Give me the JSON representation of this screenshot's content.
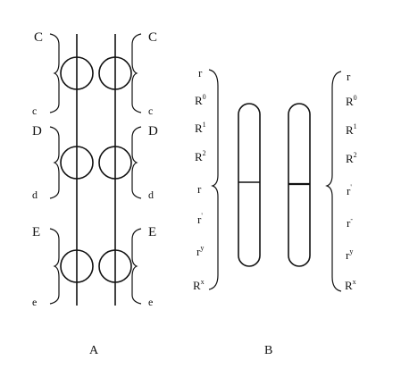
{
  "panel_a": {
    "caption": "A",
    "groups": [
      {
        "upper_left": "C",
        "upper_right": "C",
        "lower_left": "c",
        "lower_right": "c"
      },
      {
        "upper_left": "D",
        "upper_right": "D",
        "lower_left": "d",
        "lower_right": "d"
      },
      {
        "upper_left": "E",
        "upper_right": "E",
        "lower_left": "e",
        "lower_right": "e"
      }
    ]
  },
  "panel_b": {
    "caption": "B",
    "left_labels": [
      {
        "base": "r",
        "sup": ""
      },
      {
        "base": "R",
        "sup": "0"
      },
      {
        "base": "R",
        "sup": "1"
      },
      {
        "base": "R",
        "sup": "2"
      },
      {
        "base": "r",
        "sup": ""
      },
      {
        "base": "r",
        "sup": "'"
      },
      {
        "base": "r",
        "sup": "y"
      },
      {
        "base": "R",
        "sup": "x"
      }
    ],
    "right_labels": [
      {
        "base": "r",
        "sup": ""
      },
      {
        "base": "R",
        "sup": "0"
      },
      {
        "base": "R",
        "sup": "1"
      },
      {
        "base": "R",
        "sup": "2"
      },
      {
        "base": "r",
        "sup": "'"
      },
      {
        "base": "r",
        "sup": "-"
      },
      {
        "base": "r",
        "sup": "y"
      },
      {
        "base": "R",
        "sup": "x"
      }
    ]
  }
}
